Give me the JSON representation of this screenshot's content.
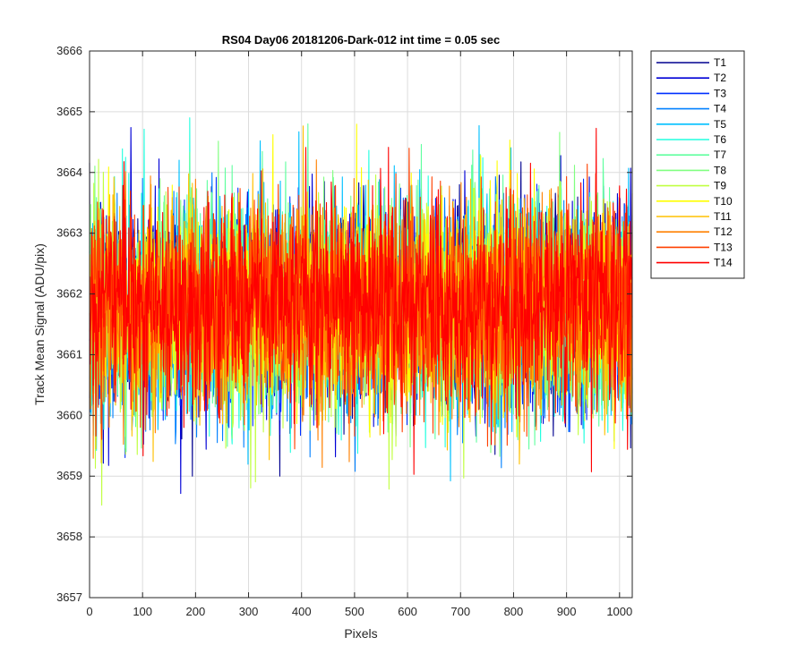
{
  "chart_data": {
    "type": "line",
    "title": "RS04 Day06 20181206-Dark-012 int time = 0.05 sec",
    "xlabel": "Pixels",
    "ylabel": "Track Mean Signal (ADU/pix)",
    "xlim": [
      0,
      1024
    ],
    "ylim": [
      3657,
      3666
    ],
    "xticks": [
      0,
      100,
      200,
      300,
      400,
      500,
      600,
      700,
      800,
      900,
      1000
    ],
    "yticks": [
      3657,
      3658,
      3659,
      3660,
      3661,
      3662,
      3663,
      3664,
      3665,
      3666
    ],
    "grid": true,
    "legend_position": "outside-top-right",
    "noise_note": "Each series is noisy per-pixel dark signal centered near 3661.7 ADU/pix, spanning roughly 3658 to 3665.5",
    "series": [
      {
        "name": "T1",
        "color": "#00008f",
        "mean": 3661.8,
        "min": 3659.0,
        "max": 3665.6
      },
      {
        "name": "T2",
        "color": "#0000d6",
        "mean": 3661.8,
        "min": 3658.5,
        "max": 3665.4
      },
      {
        "name": "T3",
        "color": "#0030ff",
        "mean": 3661.7,
        "min": 3658.3,
        "max": 3665.1
      },
      {
        "name": "T4",
        "color": "#0080ff",
        "mean": 3661.7,
        "min": 3658.4,
        "max": 3664.9
      },
      {
        "name": "T5",
        "color": "#00c0ff",
        "mean": 3661.8,
        "min": 3658.9,
        "max": 3665.0
      },
      {
        "name": "T6",
        "color": "#20ffdf",
        "mean": 3661.7,
        "min": 3659.0,
        "max": 3664.9
      },
      {
        "name": "T7",
        "color": "#60ff9f",
        "mean": 3661.8,
        "min": 3658.9,
        "max": 3664.8
      },
      {
        "name": "T8",
        "color": "#80ff80",
        "mean": 3661.8,
        "min": 3658.4,
        "max": 3665.3
      },
      {
        "name": "T9",
        "color": "#c0ff40",
        "mean": 3661.7,
        "min": 3657.8,
        "max": 3665.0
      },
      {
        "name": "T10",
        "color": "#ffff00",
        "mean": 3661.8,
        "min": 3658.9,
        "max": 3665.7
      },
      {
        "name": "T11",
        "color": "#ffc000",
        "mean": 3661.8,
        "min": 3658.9,
        "max": 3665.1
      },
      {
        "name": "T12",
        "color": "#ff8000",
        "mean": 3661.8,
        "min": 3658.7,
        "max": 3665.2
      },
      {
        "name": "T13",
        "color": "#ff4000",
        "mean": 3661.8,
        "min": 3658.9,
        "max": 3665.0
      },
      {
        "name": "T14",
        "color": "#ff0000",
        "mean": 3661.8,
        "min": 3658.4,
        "max": 3665.2
      }
    ]
  }
}
